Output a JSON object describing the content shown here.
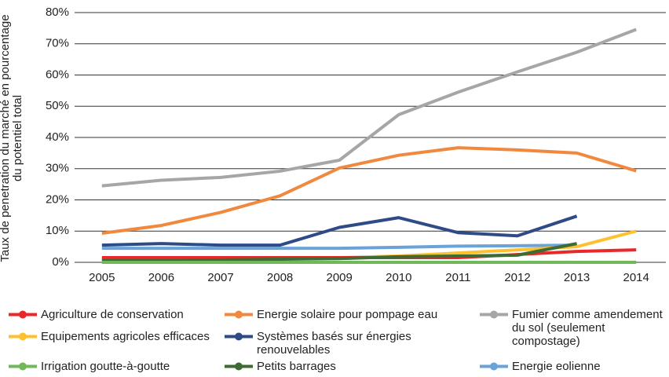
{
  "chart_data": {
    "type": "line",
    "y_label": "Taux de penetration du marché en pourcentage du potentiel total",
    "categories": [
      "2005",
      "2006",
      "2007",
      "2008",
      "2009",
      "2010",
      "2011",
      "2012",
      "2013",
      "2014"
    ],
    "ylim": [
      0,
      80
    ],
    "yticks": [
      {
        "value": 0,
        "label": "0%"
      },
      {
        "value": 10,
        "label": "10%"
      },
      {
        "value": 20,
        "label": "20%"
      },
      {
        "value": 30,
        "label": "30%"
      },
      {
        "value": 40,
        "label": "40%"
      },
      {
        "value": 50,
        "label": "50%"
      },
      {
        "value": 60,
        "label": "60%"
      },
      {
        "value": 70,
        "label": "70%"
      },
      {
        "value": 80,
        "label": "80%"
      }
    ],
    "grid": true,
    "series": [
      {
        "name": "Agriculture de conservation",
        "color": "#e8282b",
        "values": [
          1.5,
          1.5,
          1.5,
          1.5,
          1.5,
          1.5,
          1.5,
          2.5,
          3.5,
          4
        ]
      },
      {
        "name": "Energie solaire pour pompage eau",
        "color": "#f0883e",
        "values": [
          9.3,
          11.8,
          16,
          21.3,
          30.2,
          34.3,
          36.7,
          36,
          35,
          29.3
        ]
      },
      {
        "name": "Fumier comme amendement du sol (seulement compostage)",
        "color": "#a6a6a6",
        "values": [
          24.5,
          26.3,
          27.2,
          29.2,
          32.7,
          47.3,
          54.5,
          61,
          67.3,
          74.6
        ]
      },
      {
        "name": "Equipements agricoles efficaces",
        "color": "#fdc02f",
        "values": [
          1,
          1,
          1,
          1,
          1.5,
          2,
          3,
          4,
          5,
          10
        ]
      },
      {
        "name": "Systèmes basés sur énergies renouvelables",
        "color": "#2e4a87",
        "values": [
          5.5,
          6,
          5.5,
          5.5,
          11.2,
          14.3,
          9.5,
          8.5,
          14.8,
          null
        ]
      },
      {
        "name": "Irrigation goutte-à-goutte",
        "color": "#70b85a",
        "values": [
          0,
          0,
          0,
          0,
          0,
          0,
          0,
          0,
          0,
          0
        ]
      },
      {
        "name": "Petits barrages",
        "color": "#3e6b34",
        "values": [
          0.5,
          0.5,
          0.8,
          1,
          1.2,
          1.8,
          2,
          2.3,
          6,
          null
        ]
      },
      {
        "name": "Energie eolienne",
        "color": "#6aa3d9",
        "values": [
          4.5,
          4.5,
          4.5,
          4.5,
          4.5,
          4.8,
          5.2,
          5.3,
          5.5,
          null
        ]
      }
    ]
  }
}
